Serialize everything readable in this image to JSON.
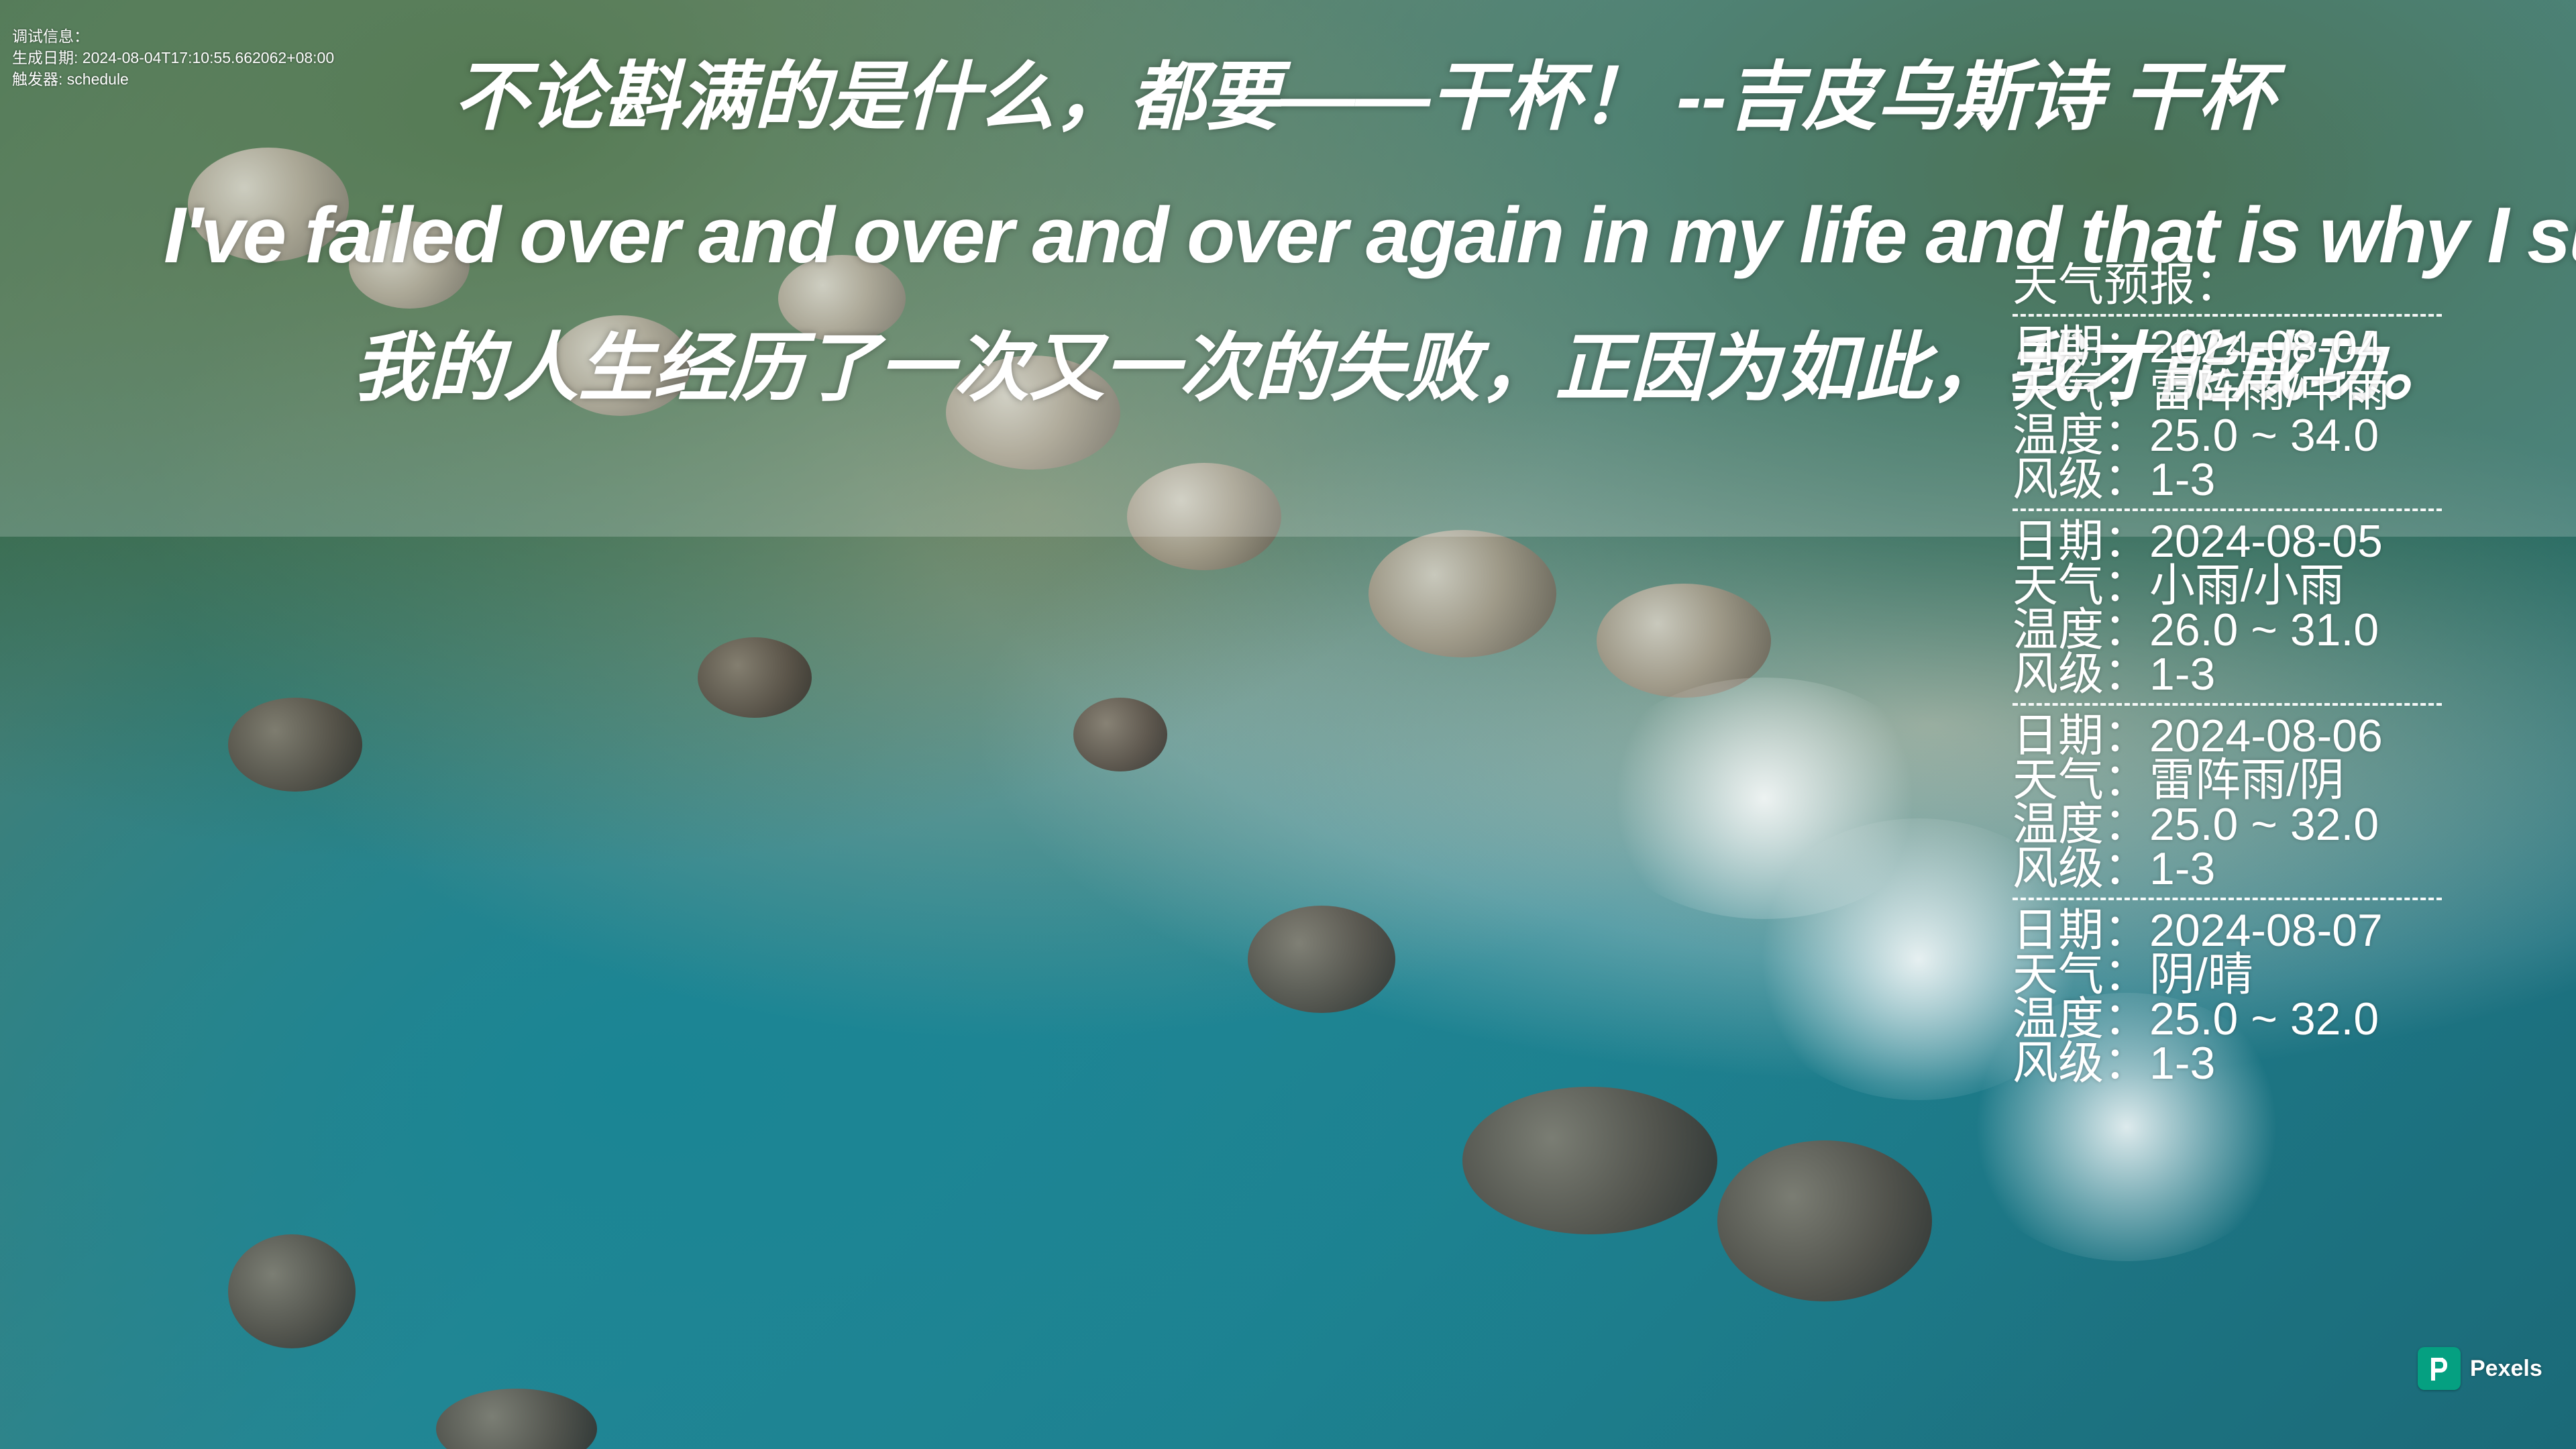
{
  "debug": {
    "title": "调试信息：",
    "generated_label": "生成日期:",
    "generated_value": "2024-08-04T17:10:55.662062+08:00",
    "trigger_label": "触发器:",
    "trigger_value": "schedule"
  },
  "quote": {
    "line_cn_1": "不论斟满的是什么，都要——干杯！    --吉皮乌斯诗 干杯",
    "line_en": "I've failed over and over and over again in my life and that is why I succeed.",
    "line_cn_2": "我的人生经历了一次又一次的失败，正因为如此，我才能成功。"
  },
  "weather": {
    "title": "天气预报：",
    "divider_text": "------------------------",
    "days": [
      {
        "date_label": "日期：",
        "date": "2024-08-04",
        "weather_label": "天气：",
        "weather": "雷阵雨/中雨",
        "temp_label": "温度：",
        "temp": "25.0 ~ 34.0",
        "wind_label": "风级：",
        "wind": "1-3"
      },
      {
        "date_label": "日期：",
        "date": "2024-08-05",
        "weather_label": "天气：",
        "weather": "小雨/小雨",
        "temp_label": "温度：",
        "temp": "26.0 ~ 31.0",
        "wind_label": "风级：",
        "wind": "1-3"
      },
      {
        "date_label": "日期：",
        "date": "2024-08-06",
        "weather_label": "天气：",
        "weather": "雷阵雨/阴",
        "temp_label": "温度：",
        "temp": "25.0 ~ 32.0",
        "wind_label": "风级：",
        "wind": "1-3"
      },
      {
        "date_label": "日期：",
        "date": "2024-08-07",
        "weather_label": "天气：",
        "weather": "阴/晴",
        "temp_label": "温度：",
        "temp": "25.0 ~ 32.0",
        "wind_label": "风级：",
        "wind": "1-3"
      }
    ]
  },
  "watermark": {
    "brand": "Pexels",
    "logo_icon": "pexels-logo-icon"
  }
}
